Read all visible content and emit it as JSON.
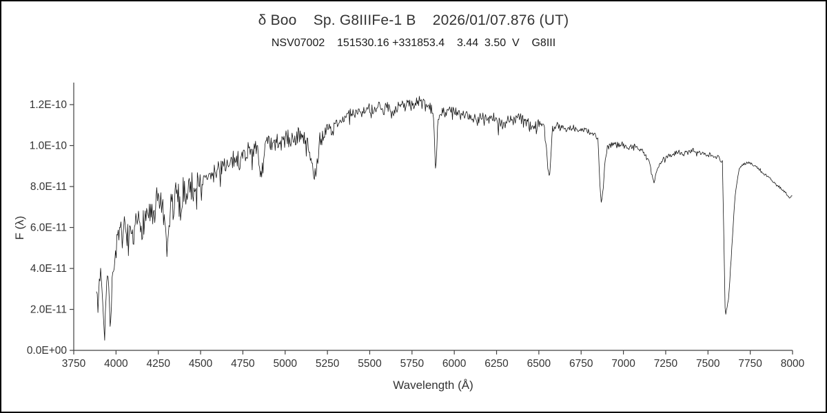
{
  "page": {
    "title": "δ Boo    Sp. G8IIIFe-1 B    2026/01/07.876 (UT)",
    "subtitle": "NSV07002    151530.16 +331853.4    3.44  3.50  V    G8III"
  },
  "chart_data": {
    "type": "line",
    "title": "δ Boo    Sp. G8IIIFe-1 B    2026/01/07.876 (UT)",
    "subtitle": "NSV07002    151530.16 +331853.4    3.44  3.50  V    G8III",
    "xlabel": "Wavelength (Å)",
    "ylabel": "F (λ)",
    "xlim": [
      3750,
      8000
    ],
    "ylim_flux_1e11_units": [
      0,
      13
    ],
    "grid": false,
    "legend": "none",
    "line_color": "#111111",
    "axis_color": "#404040",
    "tick_text_color": "#333333",
    "x_ticks": [
      3750,
      4000,
      4250,
      4500,
      4750,
      5000,
      5250,
      5500,
      5750,
      6000,
      6250,
      6500,
      6750,
      7000,
      7250,
      7500,
      7750,
      8000
    ],
    "y_ticks": {
      "values_1e11": [
        0,
        2,
        4,
        6,
        8,
        10,
        12
      ],
      "labels": [
        "0.0E+00",
        "2.0E-11",
        "4.0E-11",
        "6.0E-11",
        "8.0E-11",
        "1.0E-10",
        "1.2E-10"
      ]
    },
    "flux_scale": "values below are flux in units of 1e-11",
    "sample_step_angstrom": 4,
    "anchors": [
      [
        3885,
        3.3
      ],
      [
        3892,
        1.6
      ],
      [
        3900,
        3.4
      ],
      [
        3912,
        3.9
      ],
      [
        3922,
        2.4
      ],
      [
        3933,
        0.8
      ],
      [
        3942,
        3.2
      ],
      [
        3952,
        3.6
      ],
      [
        3960,
        2.6
      ],
      [
        3968,
        1.0
      ],
      [
        3978,
        3.4
      ],
      [
        3990,
        4.4
      ],
      [
        4000,
        4.9
      ],
      [
        4015,
        5.3
      ],
      [
        4030,
        5.6
      ],
      [
        4045,
        5.9
      ],
      [
        4060,
        5.6
      ],
      [
        4077,
        5.4
      ],
      [
        4101,
        5.1
      ],
      [
        4115,
        5.9
      ],
      [
        4130,
        6.3
      ],
      [
        4150,
        6.1
      ],
      [
        4170,
        6.4
      ],
      [
        4190,
        6.8
      ],
      [
        4210,
        6.6
      ],
      [
        4226,
        6.1
      ],
      [
        4240,
        7.2
      ],
      [
        4255,
        7.5
      ],
      [
        4270,
        7.0
      ],
      [
        4285,
        6.3
      ],
      [
        4300,
        4.4
      ],
      [
        4312,
        5.8
      ],
      [
        4325,
        7.3
      ],
      [
        4340,
        6.8
      ],
      [
        4355,
        7.7
      ],
      [
        4370,
        7.4
      ],
      [
        4383,
        6.9
      ],
      [
        4400,
        7.9
      ],
      [
        4415,
        7.7
      ],
      [
        4430,
        8.1
      ],
      [
        4455,
        7.9
      ],
      [
        4481,
        8.3
      ],
      [
        4500,
        8.4
      ],
      [
        4520,
        8.2
      ],
      [
        4540,
        8.5
      ],
      [
        4565,
        8.4
      ],
      [
        4590,
        8.8
      ],
      [
        4620,
        9.0
      ],
      [
        4640,
        9.2
      ],
      [
        4668,
        8.9
      ],
      [
        4700,
        9.4
      ],
      [
        4730,
        9.3
      ],
      [
        4760,
        9.6
      ],
      [
        4785,
        9.8
      ],
      [
        4810,
        9.9
      ],
      [
        4835,
        9.7
      ],
      [
        4861,
        8.5
      ],
      [
        4880,
        9.9
      ],
      [
        4900,
        10.1
      ],
      [
        4925,
        9.9
      ],
      [
        4957,
        10.2
      ],
      [
        4985,
        10.1
      ],
      [
        5015,
        10.4
      ],
      [
        5040,
        10.2
      ],
      [
        5070,
        10.5
      ],
      [
        5100,
        10.4
      ],
      [
        5125,
        10.1
      ],
      [
        5150,
        9.6
      ],
      [
        5167,
        8.2
      ],
      [
        5183,
        8.7
      ],
      [
        5205,
        10.2
      ],
      [
        5230,
        10.6
      ],
      [
        5255,
        10.9
      ],
      [
        5280,
        10.7
      ],
      [
        5305,
        11.1
      ],
      [
        5330,
        11.4
      ],
      [
        5355,
        11.2
      ],
      [
        5380,
        11.6
      ],
      [
        5405,
        11.5
      ],
      [
        5430,
        11.8
      ],
      [
        5455,
        11.6
      ],
      [
        5480,
        11.9
      ],
      [
        5505,
        11.8
      ],
      [
        5530,
        11.6
      ],
      [
        5555,
        11.9
      ],
      [
        5580,
        11.7
      ],
      [
        5605,
        11.9
      ],
      [
        5630,
        11.6
      ],
      [
        5655,
        11.8
      ],
      [
        5680,
        12.0
      ],
      [
        5705,
        11.9
      ],
      [
        5730,
        12.1
      ],
      [
        5755,
        11.9
      ],
      [
        5780,
        12.2
      ],
      [
        5805,
        12.1
      ],
      [
        5830,
        11.9
      ],
      [
        5860,
        11.8
      ],
      [
        5878,
        11.5
      ],
      [
        5890,
        8.4
      ],
      [
        5902,
        11.4
      ],
      [
        5925,
        11.7
      ],
      [
        5955,
        11.6
      ],
      [
        5985,
        11.8
      ],
      [
        6015,
        11.6
      ],
      [
        6045,
        11.4
      ],
      [
        6075,
        11.6
      ],
      [
        6105,
        11.4
      ],
      [
        6135,
        11.3
      ],
      [
        6165,
        11.5
      ],
      [
        6200,
        11.3
      ],
      [
        6230,
        11.4
      ],
      [
        6260,
        11.2
      ],
      [
        6290,
        11.0
      ],
      [
        6320,
        11.3
      ],
      [
        6350,
        11.2
      ],
      [
        6380,
        11.4
      ],
      [
        6410,
        11.2
      ],
      [
        6440,
        11.1
      ],
      [
        6470,
        10.9
      ],
      [
        6500,
        11.1
      ],
      [
        6530,
        11.0
      ],
      [
        6563,
        8.5
      ],
      [
        6580,
        10.8
      ],
      [
        6610,
        11.0
      ],
      [
        6640,
        10.9
      ],
      [
        6670,
        10.8
      ],
      [
        6700,
        10.9
      ],
      [
        6730,
        10.7
      ],
      [
        6760,
        10.8
      ],
      [
        6790,
        10.7
      ],
      [
        6820,
        10.6
      ],
      [
        6850,
        10.4
      ],
      [
        6860,
        8.2
      ],
      [
        6868,
        7.1
      ],
      [
        6878,
        7.6
      ],
      [
        6890,
        9.2
      ],
      [
        6905,
        9.9
      ],
      [
        6925,
        10.0
      ],
      [
        6950,
        10.2
      ],
      [
        6975,
        10.0
      ],
      [
        7000,
        10.1
      ],
      [
        7030,
        9.9
      ],
      [
        7060,
        10.0
      ],
      [
        7090,
        9.9
      ],
      [
        7120,
        9.7
      ],
      [
        7150,
        9.2
      ],
      [
        7168,
        8.6
      ],
      [
        7185,
        8.3
      ],
      [
        7200,
        8.8
      ],
      [
        7220,
        9.2
      ],
      [
        7245,
        9.4
      ],
      [
        7270,
        9.5
      ],
      [
        7300,
        9.6
      ],
      [
        7330,
        9.7
      ],
      [
        7360,
        9.6
      ],
      [
        7390,
        9.7
      ],
      [
        7420,
        9.8
      ],
      [
        7450,
        9.7
      ],
      [
        7480,
        9.6
      ],
      [
        7510,
        9.6
      ],
      [
        7540,
        9.5
      ],
      [
        7565,
        9.4
      ],
      [
        7585,
        9.2
      ],
      [
        7594,
        5.5
      ],
      [
        7602,
        1.6
      ],
      [
        7612,
        2.1
      ],
      [
        7622,
        2.6
      ],
      [
        7635,
        4.2
      ],
      [
        7648,
        6.0
      ],
      [
        7660,
        7.5
      ],
      [
        7672,
        8.3
      ],
      [
        7685,
        8.8
      ],
      [
        7700,
        9.0
      ],
      [
        7715,
        9.1
      ],
      [
        7730,
        9.2
      ],
      [
        7750,
        9.15
      ],
      [
        7770,
        9.0
      ],
      [
        7790,
        8.9
      ],
      [
        7810,
        8.8
      ],
      [
        7830,
        8.6
      ],
      [
        7850,
        8.5
      ],
      [
        7870,
        8.35
      ],
      [
        7890,
        8.2
      ],
      [
        7910,
        8.05
      ],
      [
        7930,
        7.9
      ],
      [
        7950,
        7.8
      ],
      [
        7965,
        7.6
      ],
      [
        7980,
        7.4
      ],
      [
        7992,
        7.5
      ],
      [
        8000,
        7.6
      ]
    ],
    "noise": {
      "seed": 7,
      "dip_probability": 0.06,
      "dip_scale": 2.2,
      "segments": [
        {
          "until": 4005,
          "amp": 0.45
        },
        {
          "until": 4460,
          "amp": 0.75
        },
        {
          "until": 5210,
          "amp": 0.45
        },
        {
          "until": 5900,
          "amp": 0.28
        },
        {
          "until": 6560,
          "amp": 0.25
        },
        {
          "until": 6900,
          "amp": 0.15
        },
        {
          "until": 7590,
          "amp": 0.12
        },
        {
          "until": 8001,
          "amp": 0.08
        }
      ]
    }
  }
}
